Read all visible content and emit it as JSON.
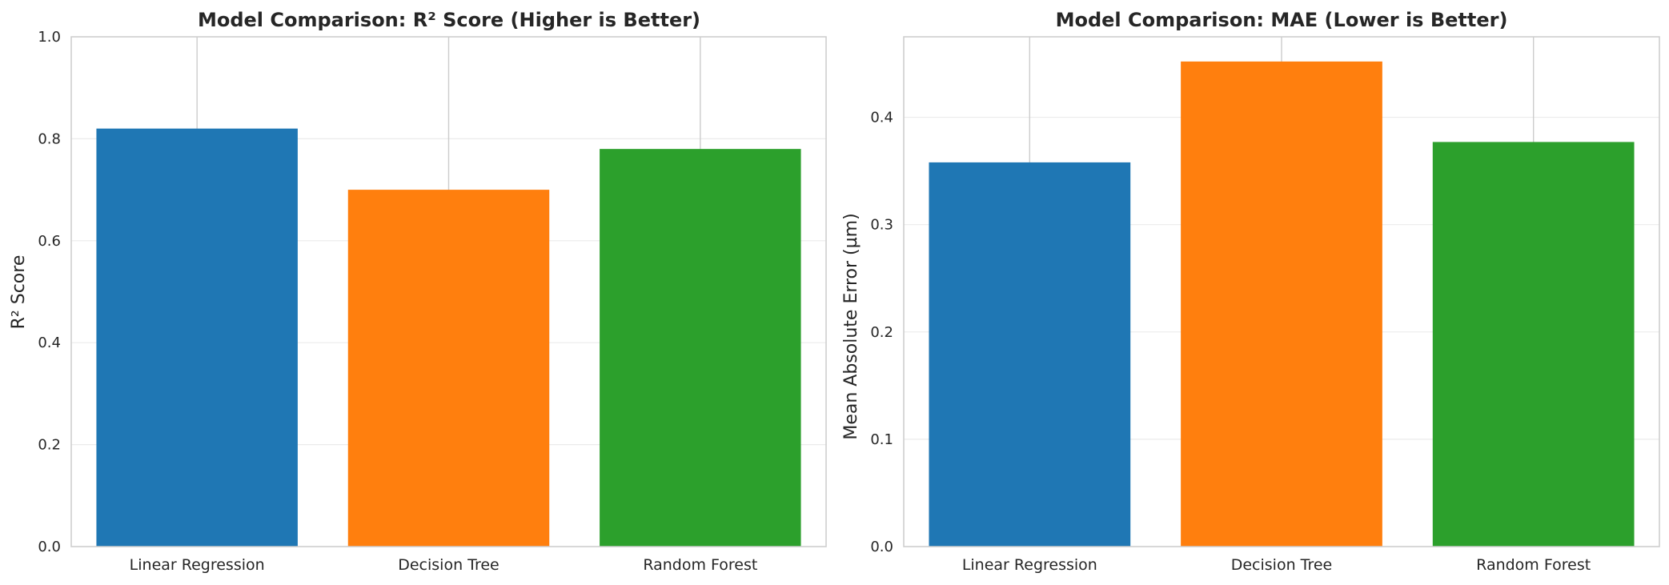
{
  "chart_data": [
    {
      "type": "bar",
      "title": "Model Comparison: R² Score (Higher is Better)",
      "xlabel": "",
      "ylabel": "R² Score",
      "categories": [
        "Linear Regression",
        "Decision Tree",
        "Random Forest"
      ],
      "values": [
        0.82,
        0.7,
        0.78
      ],
      "colors": [
        "#1f77b4",
        "#ff7f0e",
        "#2ca02c"
      ],
      "ylim": [
        0,
        1.0
      ],
      "yticks": [
        0.0,
        0.2,
        0.4,
        0.6,
        0.8,
        1.0
      ],
      "ytick_labels": [
        "0.0",
        "0.2",
        "0.4",
        "0.6",
        "0.8",
        "1.0"
      ],
      "grid": true
    },
    {
      "type": "bar",
      "title": "Model Comparison: MAE (Lower is Better)",
      "xlabel": "",
      "ylabel": "Mean Absolute Error (µm)",
      "categories": [
        "Linear Regression",
        "Decision Tree",
        "Random Forest"
      ],
      "values": [
        0.358,
        0.452,
        0.377
      ],
      "colors": [
        "#1f77b4",
        "#ff7f0e",
        "#2ca02c"
      ],
      "ylim": [
        0,
        0.475
      ],
      "yticks": [
        0.0,
        0.1,
        0.2,
        0.3,
        0.4
      ],
      "ytick_labels": [
        "0.0",
        "0.1",
        "0.2",
        "0.3",
        "0.4"
      ],
      "grid": true
    }
  ]
}
